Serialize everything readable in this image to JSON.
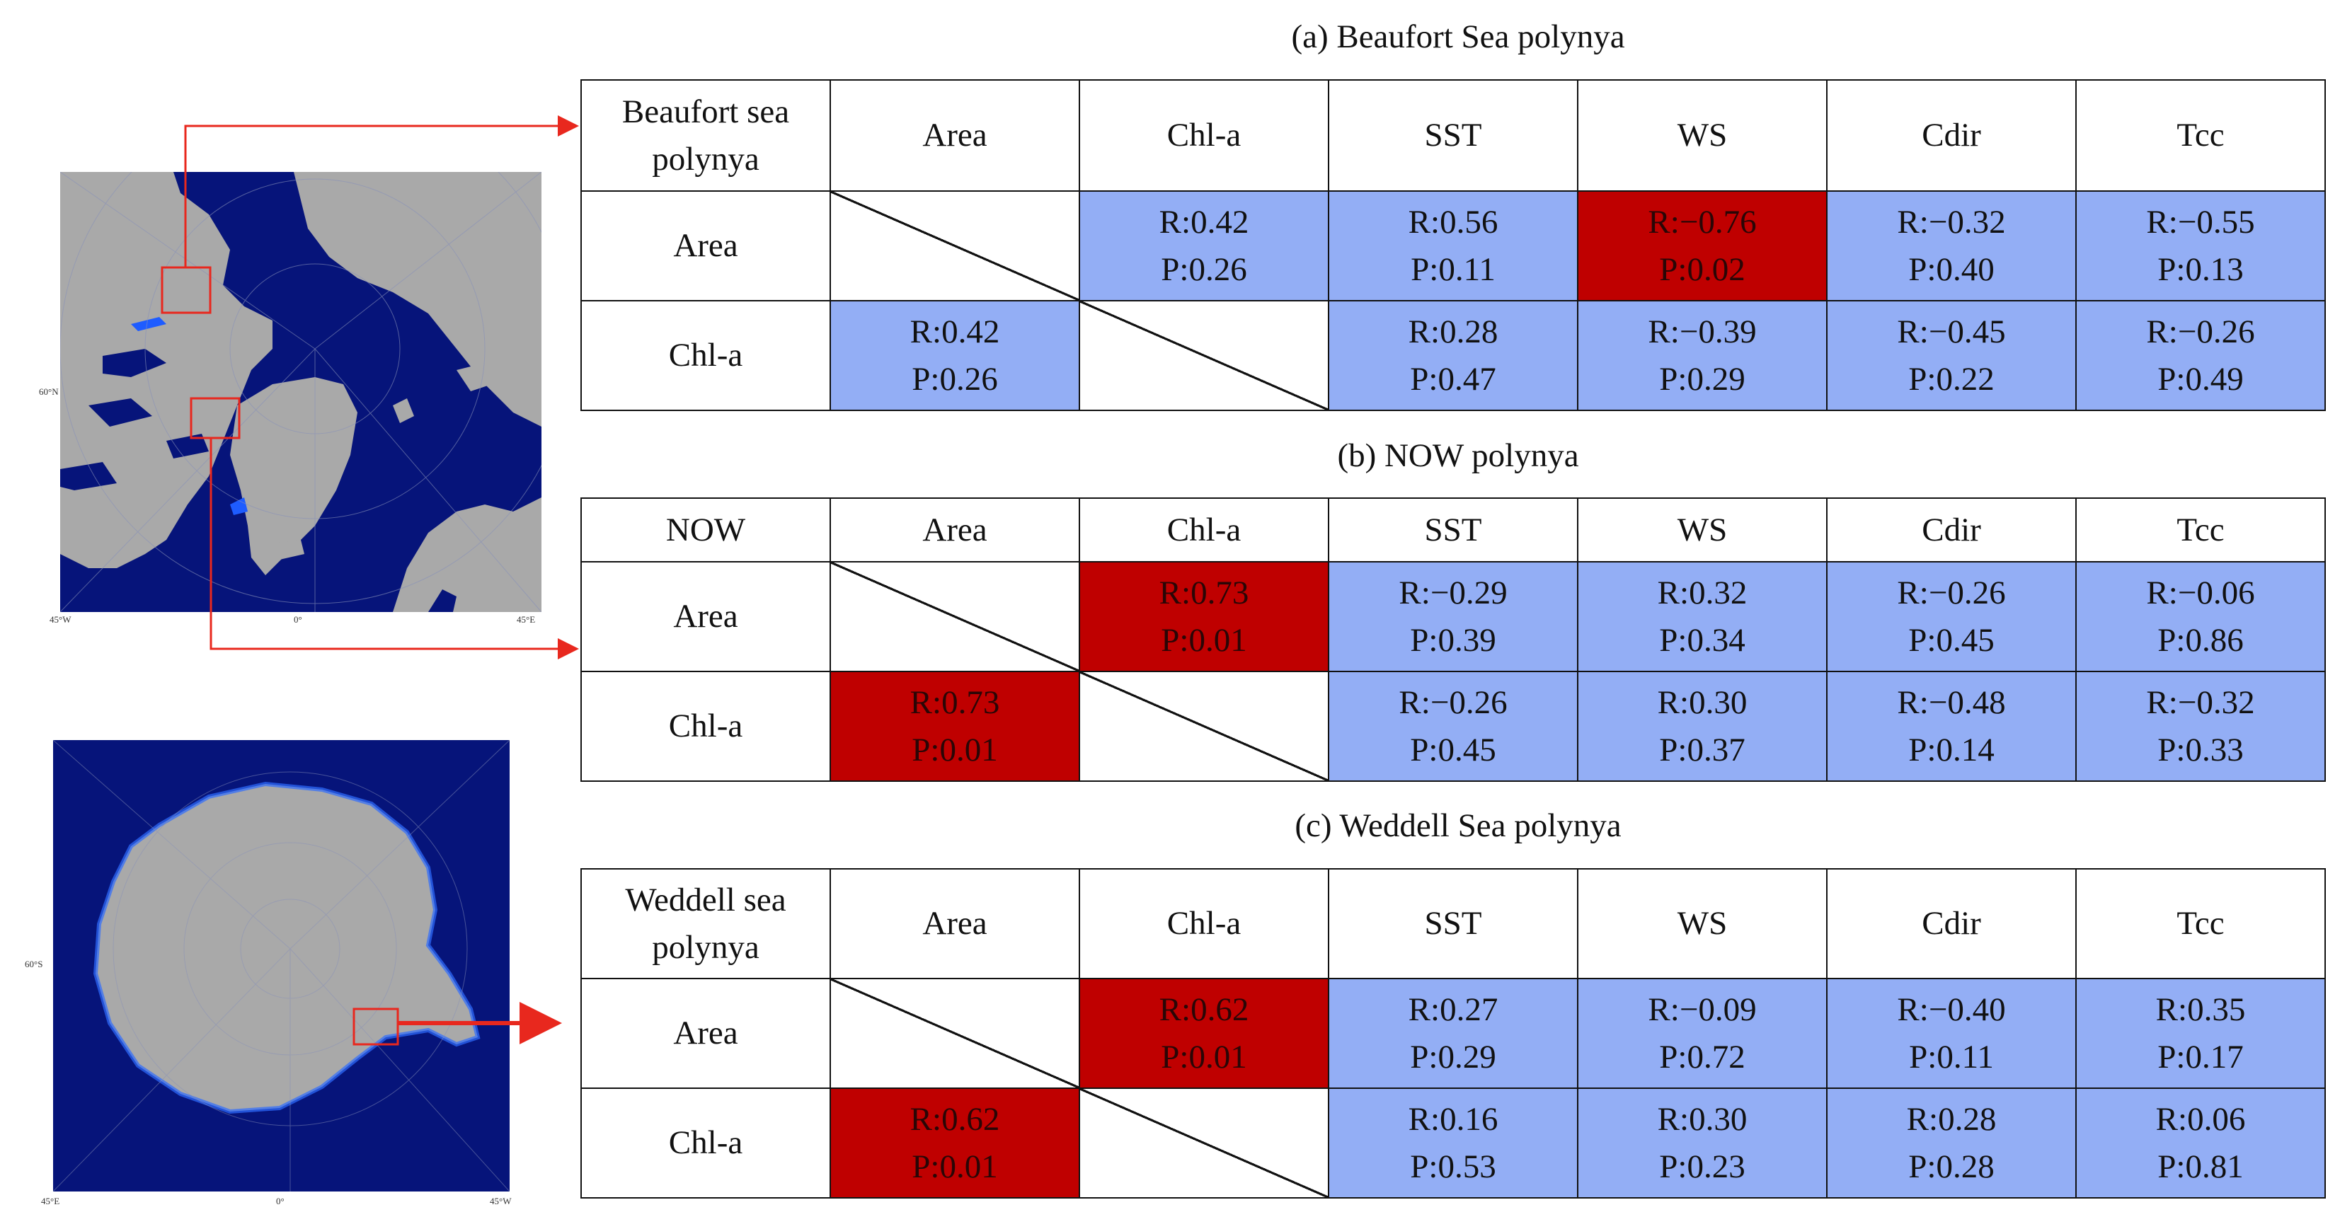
{
  "maps": {
    "arctic": {
      "labels": {
        "lat": "60°N",
        "lon_left": "45°W",
        "lon_center": "0°",
        "lon_right": "45°E"
      }
    },
    "antarctic": {
      "labels": {
        "lat": "60°S",
        "lon_left": "45°E",
        "lon_center": "0°",
        "lon_right": "45°W"
      }
    }
  },
  "colors": {
    "blue": "#93aef5",
    "red": "#bf0000",
    "arrow": "#e8281e",
    "ocean": "#06147a",
    "land": "#a9a9a9"
  },
  "tables": [
    {
      "caption": "(a) Beaufort Sea polynya",
      "corner": [
        "Beaufort sea",
        "polynya"
      ],
      "columns": [
        "Area",
        "Chl-a",
        "SST",
        "WS",
        "Cdir",
        "Tcc"
      ],
      "rows": [
        {
          "label": "Area",
          "cells": [
            {
              "kind": "diag"
            },
            {
              "r": "R:0.42",
              "p": "P:0.26",
              "color": "blue"
            },
            {
              "r": "R:0.56",
              "p": "P:0.11",
              "color": "blue"
            },
            {
              "r": "R:−0.76",
              "p": "P:0.02",
              "color": "red"
            },
            {
              "r": "R:−0.32",
              "p": "P:0.40",
              "color": "blue"
            },
            {
              "r": "R:−0.55",
              "p": "P:0.13",
              "color": "blue"
            }
          ]
        },
        {
          "label": "Chl-a",
          "cells": [
            {
              "r": "R:0.42",
              "p": "P:0.26",
              "color": "blue"
            },
            {
              "kind": "diag"
            },
            {
              "r": "R:0.28",
              "p": "P:0.47",
              "color": "blue"
            },
            {
              "r": "R:−0.39",
              "p": "P:0.29",
              "color": "blue"
            },
            {
              "r": "R:−0.45",
              "p": "P:0.22",
              "color": "blue"
            },
            {
              "r": "R:−0.26",
              "p": "P:0.49",
              "color": "blue"
            }
          ]
        }
      ]
    },
    {
      "caption": "(b) NOW polynya",
      "corner": [
        "NOW"
      ],
      "columns": [
        "Area",
        "Chl-a",
        "SST",
        "WS",
        "Cdir",
        "Tcc"
      ],
      "rows": [
        {
          "label": "Area",
          "cells": [
            {
              "kind": "diag"
            },
            {
              "r": "R:0.73",
              "p": "P:0.01",
              "color": "red"
            },
            {
              "r": "R:−0.29",
              "p": "P:0.39",
              "color": "blue"
            },
            {
              "r": "R:0.32",
              "p": "P:0.34",
              "color": "blue"
            },
            {
              "r": "R:−0.26",
              "p": "P:0.45",
              "color": "blue"
            },
            {
              "r": "R:−0.06",
              "p": "P:0.86",
              "color": "blue"
            }
          ]
        },
        {
          "label": "Chl-a",
          "cells": [
            {
              "r": "R:0.73",
              "p": "P:0.01",
              "color": "red"
            },
            {
              "kind": "diag"
            },
            {
              "r": "R:−0.26",
              "p": "P:0.45",
              "color": "blue"
            },
            {
              "r": "R:0.30",
              "p": "P:0.37",
              "color": "blue"
            },
            {
              "r": "R:−0.48",
              "p": "P:0.14",
              "color": "blue"
            },
            {
              "r": "R:−0.32",
              "p": "P:0.33",
              "color": "blue"
            }
          ]
        }
      ]
    },
    {
      "caption": "(c) Weddell Sea polynya",
      "corner": [
        "Weddell sea",
        "polynya"
      ],
      "columns": [
        "Area",
        "Chl-a",
        "SST",
        "WS",
        "Cdir",
        "Tcc"
      ],
      "rows": [
        {
          "label": "Area",
          "cells": [
            {
              "kind": "diag"
            },
            {
              "r": "R:0.62",
              "p": "P:0.01",
              "color": "red"
            },
            {
              "r": "R:0.27",
              "p": "P:0.29",
              "color": "blue"
            },
            {
              "r": "R:−0.09",
              "p": "P:0.72",
              "color": "blue"
            },
            {
              "r": "R:−0.40",
              "p": "P:0.11",
              "color": "blue"
            },
            {
              "r": "R:0.35",
              "p": "P:0.17",
              "color": "blue"
            }
          ]
        },
        {
          "label": "Chl-a",
          "cells": [
            {
              "r": "R:0.62",
              "p": "P:0.01",
              "color": "red"
            },
            {
              "kind": "diag"
            },
            {
              "r": "R:0.16",
              "p": "P:0.53",
              "color": "blue"
            },
            {
              "r": "R:0.30",
              "p": "P:0.23",
              "color": "blue"
            },
            {
              "r": "R:0.28",
              "p": "P:0.28",
              "color": "blue"
            },
            {
              "r": "R:0.06",
              "p": "P:0.81",
              "color": "blue"
            }
          ]
        }
      ]
    }
  ]
}
